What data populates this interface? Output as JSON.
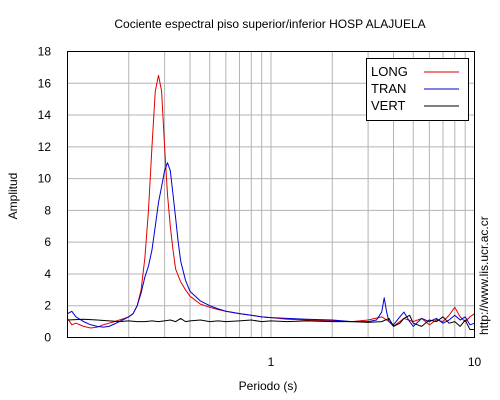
{
  "chart_data": {
    "type": "line",
    "title": "Cociente espectral piso superior/inferior  HOSP ALAJUELA",
    "xlabel": "Periodo (s)",
    "ylabel": "Amplitud",
    "xscale": "log",
    "xlim": [
      0.1,
      10
    ],
    "ylim": [
      0,
      18
    ],
    "xticks": [
      {
        "value": 1,
        "label": "1"
      },
      {
        "value": 10,
        "label": "10"
      }
    ],
    "yticks": [
      0,
      2,
      4,
      6,
      8,
      10,
      12,
      14,
      16,
      18
    ],
    "grid": true,
    "legend_position": "top-right",
    "side_text": "http://www.lis.ucr.ac.cr",
    "series": [
      {
        "name": "LONG",
        "color": "#e00000",
        "points": [
          [
            0.1,
            1.2
          ],
          [
            0.105,
            0.8
          ],
          [
            0.11,
            0.9
          ],
          [
            0.12,
            0.7
          ],
          [
            0.13,
            0.6
          ],
          [
            0.14,
            0.65
          ],
          [
            0.15,
            0.8
          ],
          [
            0.16,
            0.9
          ],
          [
            0.17,
            1.0
          ],
          [
            0.18,
            1.1
          ],
          [
            0.19,
            1.2
          ],
          [
            0.2,
            1.3
          ],
          [
            0.21,
            1.5
          ],
          [
            0.22,
            2.0
          ],
          [
            0.23,
            3.0
          ],
          [
            0.24,
            5.0
          ],
          [
            0.25,
            8.0
          ],
          [
            0.26,
            12.0
          ],
          [
            0.27,
            15.5
          ],
          [
            0.28,
            16.5
          ],
          [
            0.29,
            15.5
          ],
          [
            0.3,
            12.0
          ],
          [
            0.31,
            9.0
          ],
          [
            0.32,
            7.0
          ],
          [
            0.33,
            5.5
          ],
          [
            0.34,
            4.3
          ],
          [
            0.36,
            3.5
          ],
          [
            0.38,
            3.0
          ],
          [
            0.4,
            2.6
          ],
          [
            0.45,
            2.1
          ],
          [
            0.5,
            1.9
          ],
          [
            0.55,
            1.75
          ],
          [
            0.6,
            1.65
          ],
          [
            0.7,
            1.5
          ],
          [
            0.8,
            1.4
          ],
          [
            0.9,
            1.3
          ],
          [
            1.0,
            1.25
          ],
          [
            1.2,
            1.15
          ],
          [
            1.5,
            1.1
          ],
          [
            2.0,
            1.05
          ],
          [
            2.5,
            1.0
          ],
          [
            3.0,
            1.1
          ],
          [
            3.5,
            1.3
          ],
          [
            3.8,
            1.0
          ],
          [
            4.0,
            0.7
          ],
          [
            4.5,
            1.2
          ],
          [
            5.0,
            1.0
          ],
          [
            5.5,
            1.2
          ],
          [
            6.0,
            0.8
          ],
          [
            6.5,
            1.1
          ],
          [
            7.0,
            1.0
          ],
          [
            7.5,
            1.4
          ],
          [
            8.0,
            1.9
          ],
          [
            8.5,
            1.3
          ],
          [
            9.0,
            1.0
          ],
          [
            9.5,
            1.3
          ],
          [
            10.0,
            1.5
          ]
        ]
      },
      {
        "name": "TRAN",
        "color": "#0000d0",
        "points": [
          [
            0.1,
            1.5
          ],
          [
            0.105,
            1.65
          ],
          [
            0.11,
            1.3
          ],
          [
            0.12,
            1.0
          ],
          [
            0.13,
            0.8
          ],
          [
            0.14,
            0.7
          ],
          [
            0.15,
            0.65
          ],
          [
            0.16,
            0.7
          ],
          [
            0.17,
            0.85
          ],
          [
            0.18,
            1.0
          ],
          [
            0.19,
            1.15
          ],
          [
            0.2,
            1.3
          ],
          [
            0.21,
            1.5
          ],
          [
            0.22,
            2.0
          ],
          [
            0.23,
            2.8
          ],
          [
            0.24,
            3.8
          ],
          [
            0.25,
            4.5
          ],
          [
            0.26,
            5.5
          ],
          [
            0.27,
            7.0
          ],
          [
            0.28,
            8.5
          ],
          [
            0.29,
            9.5
          ],
          [
            0.3,
            10.5
          ],
          [
            0.31,
            11.0
          ],
          [
            0.32,
            10.5
          ],
          [
            0.33,
            9.0
          ],
          [
            0.34,
            7.5
          ],
          [
            0.35,
            6.0
          ],
          [
            0.36,
            4.8
          ],
          [
            0.38,
            3.6
          ],
          [
            0.4,
            2.9
          ],
          [
            0.45,
            2.3
          ],
          [
            0.5,
            2.0
          ],
          [
            0.55,
            1.8
          ],
          [
            0.6,
            1.65
          ],
          [
            0.7,
            1.5
          ],
          [
            0.8,
            1.4
          ],
          [
            0.9,
            1.3
          ],
          [
            1.0,
            1.25
          ],
          [
            1.2,
            1.2
          ],
          [
            1.5,
            1.15
          ],
          [
            2.0,
            1.1
          ],
          [
            2.5,
            1.0
          ],
          [
            3.0,
            1.0
          ],
          [
            3.3,
            1.1
          ],
          [
            3.5,
            1.6
          ],
          [
            3.6,
            2.5
          ],
          [
            3.7,
            1.6
          ],
          [
            3.8,
            1.0
          ],
          [
            4.0,
            0.8
          ],
          [
            4.3,
            1.3
          ],
          [
            4.5,
            1.6
          ],
          [
            4.8,
            1.0
          ],
          [
            5.0,
            0.7
          ],
          [
            5.5,
            1.2
          ],
          [
            6.0,
            1.0
          ],
          [
            6.5,
            1.2
          ],
          [
            7.0,
            0.9
          ],
          [
            7.5,
            1.1
          ],
          [
            8.0,
            1.4
          ],
          [
            8.5,
            1.1
          ],
          [
            9.0,
            1.3
          ],
          [
            9.5,
            0.8
          ],
          [
            10.0,
            0.9
          ]
        ]
      },
      {
        "name": "VERT",
        "color": "#000000",
        "points": [
          [
            0.1,
            1.1
          ],
          [
            0.12,
            1.15
          ],
          [
            0.14,
            1.1
          ],
          [
            0.16,
            1.05
          ],
          [
            0.18,
            1.0
          ],
          [
            0.2,
            1.05
          ],
          [
            0.22,
            1.0
          ],
          [
            0.24,
            1.0
          ],
          [
            0.26,
            1.05
          ],
          [
            0.28,
            1.0
          ],
          [
            0.3,
            1.05
          ],
          [
            0.32,
            1.1
          ],
          [
            0.34,
            1.0
          ],
          [
            0.36,
            1.2
          ],
          [
            0.38,
            1.0
          ],
          [
            0.4,
            1.05
          ],
          [
            0.45,
            1.1
          ],
          [
            0.5,
            1.0
          ],
          [
            0.55,
            1.05
          ],
          [
            0.6,
            1.0
          ],
          [
            0.7,
            1.05
          ],
          [
            0.8,
            1.1
          ],
          [
            0.9,
            1.0
          ],
          [
            1.0,
            1.05
          ],
          [
            1.2,
            1.0
          ],
          [
            1.5,
            1.05
          ],
          [
            2.0,
            1.0
          ],
          [
            2.5,
            1.0
          ],
          [
            3.0,
            0.95
          ],
          [
            3.5,
            1.0
          ],
          [
            3.8,
            1.2
          ],
          [
            4.0,
            0.7
          ],
          [
            4.3,
            0.9
          ],
          [
            4.5,
            1.2
          ],
          [
            4.8,
            1.4
          ],
          [
            5.0,
            0.9
          ],
          [
            5.5,
            0.7
          ],
          [
            6.0,
            1.1
          ],
          [
            6.5,
            1.0
          ],
          [
            7.0,
            1.3
          ],
          [
            7.5,
            0.9
          ],
          [
            8.0,
            1.0
          ],
          [
            8.5,
            0.7
          ],
          [
            9.0,
            1.1
          ],
          [
            9.5,
            0.5
          ],
          [
            10.0,
            0.5
          ]
        ]
      }
    ]
  }
}
